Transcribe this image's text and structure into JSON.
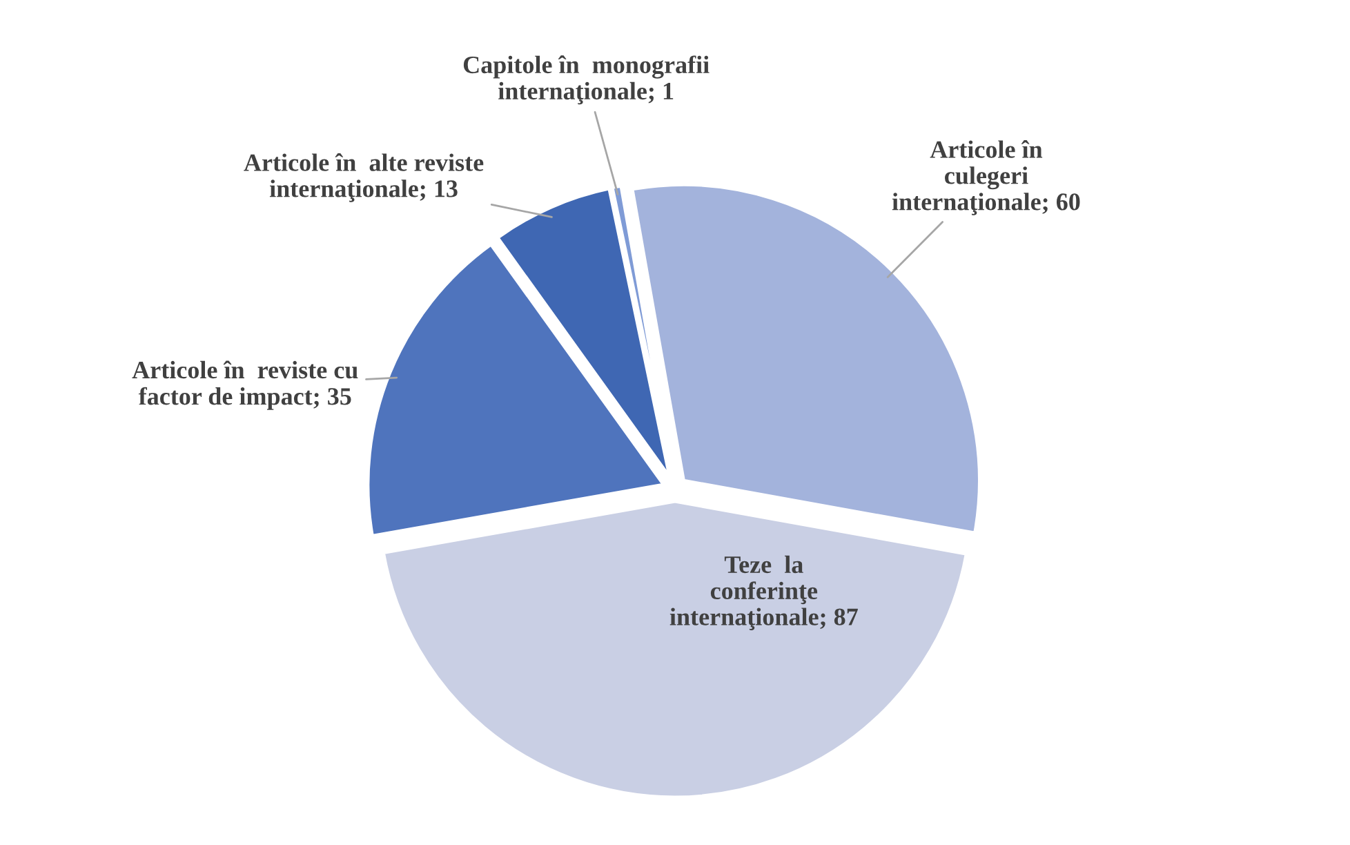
{
  "chart_data": {
    "type": "pie",
    "categories": [
      "Articole în\nculegeri\ninternaţionale; 60",
      "Teze  la\nconferinţe\ninternaţionale; 87",
      "Articole în  reviste cu\nfactor de impact; 35",
      "Articole în  alte reviste\ninternaţionale; 13",
      "Capitole în  monografii\ninternaţionale; 1"
    ],
    "values": [
      60,
      87,
      35,
      13,
      1
    ],
    "colors": [
      "#a3b3dc",
      "#c9cfe4",
      "#4f74bd",
      "#3f67b3",
      "#7f9bd6"
    ]
  }
}
